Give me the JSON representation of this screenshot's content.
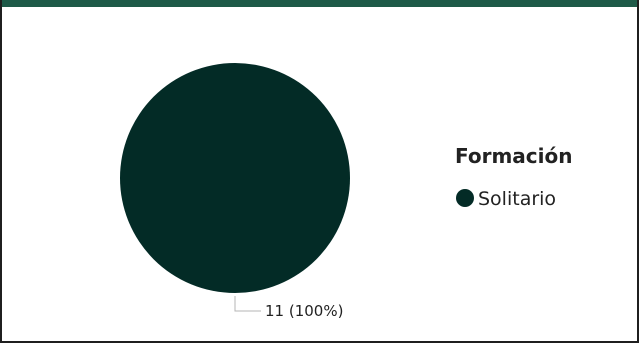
{
  "colors": {
    "header_bar": "#1e5a48",
    "slice": "#032b26",
    "leader_line": "#b5b5b5"
  },
  "chart_data": {
    "type": "pie",
    "legend_title": "Formación",
    "legend_position": "right",
    "slices": [
      {
        "label": "Solitario",
        "value": 11,
        "percent": 100,
        "data_label": "11 (100%)",
        "color": "#032b26"
      }
    ]
  }
}
